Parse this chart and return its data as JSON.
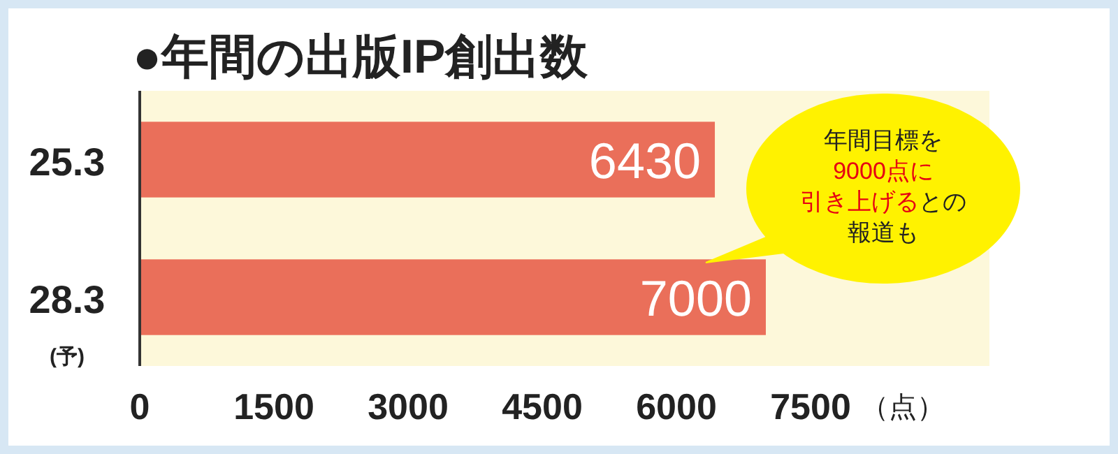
{
  "chart_data": {
    "type": "bar",
    "orientation": "horizontal",
    "title": "●年間の出版IP創出数",
    "categories": [
      "25.3",
      "28.3\n(予)"
    ],
    "values": [
      6430,
      7000
    ],
    "color": "#ea6f5a",
    "xlim": [
      0,
      9500
    ],
    "xticks": [
      0,
      1500,
      3000,
      4500,
      6000,
      7500
    ],
    "xlabel": "（点）",
    "data_labels": true,
    "annotations": [
      "年間目標を9000点に引き上げるとの報道も"
    ]
  }
}
